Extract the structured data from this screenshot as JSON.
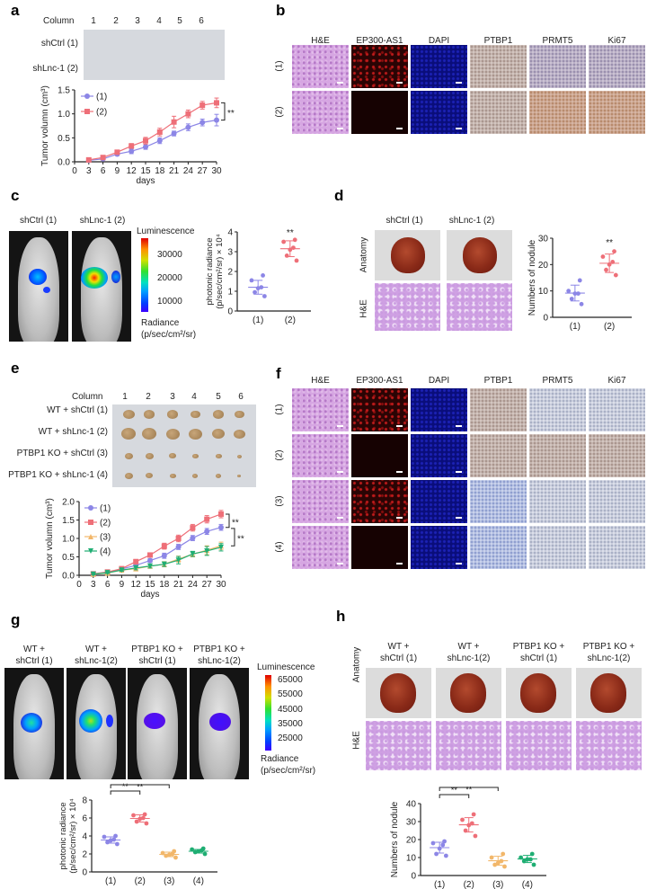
{
  "panels": {
    "a": {
      "label": "a",
      "column_label": "Column",
      "columns": [
        "1",
        "2",
        "3",
        "4",
        "5",
        "6"
      ],
      "rows": [
        "shCtrl (1)",
        "shLnc-1 (2)"
      ]
    },
    "b": {
      "label": "b",
      "stains": [
        "H&E",
        "EP300-AS1",
        "DAPI",
        "PTBP1",
        "PRMT5",
        "Ki67"
      ],
      "rows": [
        "(1)",
        "(2)"
      ]
    },
    "c": {
      "label": "c",
      "images": [
        "shCtrl (1)",
        "shLnc-1 (2)"
      ],
      "colorbar": {
        "title": "Luminescence",
        "ticks": [
          "30000",
          "20000",
          "10000"
        ],
        "unit_line1": "Radiance",
        "unit_line2": "(p/sec/cm²/sr)"
      }
    },
    "d": {
      "label": "d",
      "images": [
        "shCtrl (1)",
        "shLnc-1 (2)"
      ],
      "row_labels": [
        "Anatomy",
        "H&E"
      ]
    },
    "e": {
      "label": "e",
      "column_label": "Column",
      "columns": [
        "1",
        "2",
        "3",
        "4",
        "5",
        "6"
      ],
      "rows": [
        "WT + shCtrl (1)",
        "WT + shLnc-1 (2)",
        "PTBP1 KO + shCtrl (3)",
        "PTBP1 KO + shLnc-1 (4)"
      ]
    },
    "f": {
      "label": "f",
      "stains": [
        "H&E",
        "EP300-AS1",
        "DAPI",
        "PTBP1",
        "PRMT5",
        "Ki67"
      ],
      "rows": [
        "(1)",
        "(2)",
        "(3)",
        "(4)"
      ]
    },
    "g": {
      "label": "g",
      "images": [
        {
          "line1": "WT +",
          "line2": "shCtrl (1)"
        },
        {
          "line1": "WT +",
          "line2": "shLnc-1(2)"
        },
        {
          "line1": "PTBP1 KO +",
          "line2": "shCtrl (1)"
        },
        {
          "line1": "PTBP1 KO +",
          "line2": "shLnc-1(2)"
        }
      ],
      "colorbar": {
        "title": "Luminescence",
        "ticks": [
          "65000",
          "55000",
          "45000",
          "35000",
          "25000"
        ],
        "unit_line1": "Radiance",
        "unit_line2": "(p/sec/cm²/sr)"
      }
    },
    "h": {
      "label": "h",
      "images": [
        {
          "line1": "WT +",
          "line2": "shCtrl (1)"
        },
        {
          "line1": "WT +",
          "line2": "shLnc-1(2)"
        },
        {
          "line1": "PTBP1 KO +",
          "line2": "shCtrl (1)"
        },
        {
          "line1": "PTBP1 KO +",
          "line2": "shLnc-1(2)"
        }
      ],
      "row_labels": [
        "Anatomy",
        "H&E"
      ]
    }
  },
  "colors": {
    "g1": "#8c86e6",
    "g2": "#ee6f78",
    "g3": "#f2b76a",
    "g4": "#1fae73",
    "axis": "#222222"
  },
  "chart_data": [
    {
      "id": "a-growth",
      "type": "line",
      "xlabel": "days",
      "ylabel": "Tumor volumn (cm³)",
      "x": [
        3,
        6,
        9,
        12,
        15,
        18,
        21,
        24,
        27,
        30
      ],
      "xticks": [
        "0",
        "3",
        "6",
        "9",
        "12",
        "15",
        "18",
        "21",
        "24",
        "27",
        "30"
      ],
      "xlim": [
        0,
        30
      ],
      "ylim": [
        0,
        1.5
      ],
      "yticks": [
        "0.0",
        "0.5",
        "1.0",
        "1.5"
      ],
      "series": [
        {
          "name": "(1)",
          "marker": "circle",
          "values": [
            0.03,
            0.06,
            0.16,
            0.22,
            0.31,
            0.44,
            0.59,
            0.72,
            0.82,
            0.87
          ],
          "err": [
            0.02,
            0.02,
            0.03,
            0.05,
            0.05,
            0.06,
            0.05,
            0.07,
            0.07,
            0.12
          ]
        },
        {
          "name": "(2)",
          "marker": "square",
          "values": [
            0.04,
            0.09,
            0.2,
            0.33,
            0.44,
            0.62,
            0.83,
            1.0,
            1.18,
            1.23
          ],
          "err": [
            0.02,
            0.03,
            0.04,
            0.05,
            0.07,
            0.08,
            0.12,
            0.08,
            0.08,
            0.1
          ]
        }
      ],
      "annotations": [
        "**"
      ]
    },
    {
      "id": "c-radiance",
      "type": "scatter",
      "ylabel": "photonic radiance (p/sec/cm²/sr) × 10⁴",
      "categories": [
        "(1)",
        "(2)"
      ],
      "ylim": [
        0,
        4
      ],
      "yticks": [
        "0",
        "1",
        "2",
        "3",
        "4"
      ],
      "series": [
        {
          "name": "(1)",
          "points": [
            0.75,
            0.95,
            1.15,
            1.2,
            1.55,
            1.8
          ],
          "mean": 1.2,
          "sd": 0.35
        },
        {
          "name": "(2)",
          "points": [
            2.55,
            2.8,
            3.1,
            3.2,
            3.5,
            3.6
          ],
          "mean": 3.15,
          "sd": 0.4
        }
      ],
      "annotations": [
        "**"
      ]
    },
    {
      "id": "d-nodule",
      "type": "scatter",
      "ylabel": "Numbers of nodule",
      "categories": [
        "(1)",
        "(2)"
      ],
      "ylim": [
        0,
        30
      ],
      "yticks": [
        "0",
        "10",
        "20",
        "30"
      ],
      "series": [
        {
          "name": "(1)",
          "points": [
            5,
            7,
            9,
            9,
            10,
            14
          ],
          "mean": 9.2,
          "sd": 3
        },
        {
          "name": "(2)",
          "points": [
            16,
            18,
            20,
            21,
            23,
            25
          ],
          "mean": 20.5,
          "sd": 3.5
        }
      ],
      "annotations": [
        "**"
      ]
    },
    {
      "id": "e-growth",
      "type": "line",
      "xlabel": "days",
      "ylabel": "Tumor volumn (cm³)",
      "x": [
        3,
        6,
        9,
        12,
        15,
        18,
        21,
        24,
        27,
        30
      ],
      "xticks": [
        "0",
        "3",
        "6",
        "9",
        "12",
        "15",
        "18",
        "21",
        "24",
        "27",
        "30"
      ],
      "xlim": [
        0,
        30
      ],
      "ylim": [
        0,
        2.0
      ],
      "yticks": [
        "0.0",
        "0.5",
        "1.0",
        "1.5",
        "2.0"
      ],
      "series": [
        {
          "name": "(1)",
          "marker": "circle",
          "values": [
            0.03,
            0.08,
            0.17,
            0.27,
            0.4,
            0.53,
            0.77,
            1.01,
            1.19,
            1.3
          ],
          "err": [
            0.02,
            0.03,
            0.03,
            0.05,
            0.05,
            0.07,
            0.07,
            0.07,
            0.08,
            0.08
          ]
        },
        {
          "name": "(2)",
          "marker": "square",
          "values": [
            0.04,
            0.09,
            0.18,
            0.37,
            0.55,
            0.79,
            1.0,
            1.29,
            1.52,
            1.66
          ],
          "err": [
            0.02,
            0.03,
            0.04,
            0.06,
            0.06,
            0.08,
            0.09,
            0.09,
            0.1,
            0.1
          ]
        },
        {
          "name": "(3)",
          "marker": "triangle-up",
          "values": [
            0.03,
            0.06,
            0.14,
            0.18,
            0.25,
            0.3,
            0.44,
            0.57,
            0.68,
            0.8
          ],
          "err": [
            0.02,
            0.02,
            0.03,
            0.06,
            0.05,
            0.07,
            0.08,
            0.07,
            0.12,
            0.1
          ]
        },
        {
          "name": "(4)",
          "marker": "triangle-down",
          "values": [
            0.03,
            0.07,
            0.14,
            0.2,
            0.25,
            0.3,
            0.41,
            0.58,
            0.66,
            0.76
          ],
          "err": [
            0.02,
            0.02,
            0.03,
            0.05,
            0.05,
            0.06,
            0.1,
            0.07,
            0.12,
            0.1
          ]
        }
      ],
      "annotations": [
        "**",
        "**"
      ]
    },
    {
      "id": "g-radiance",
      "type": "scatter",
      "ylabel": "photonic radiance (p/sec/cm²/sr) × 10⁴",
      "categories": [
        "(1)",
        "(2)",
        "(3)",
        "(4)"
      ],
      "ylim": [
        0,
        8
      ],
      "yticks": [
        "0",
        "2",
        "4",
        "6",
        "8"
      ],
      "series": [
        {
          "name": "(1)",
          "points": [
            3.1,
            3.3,
            3.5,
            3.6,
            3.9,
            4.0
          ],
          "mean": 3.55,
          "sd": 0.35
        },
        {
          "name": "(2)",
          "points": [
            5.4,
            5.6,
            5.9,
            6.0,
            6.3,
            6.4
          ],
          "mean": 5.95,
          "sd": 0.4
        },
        {
          "name": "(3)",
          "points": [
            1.6,
            1.8,
            1.9,
            2.0,
            2.1,
            2.3
          ],
          "mean": 1.95,
          "sd": 0.25
        },
        {
          "name": "(4)",
          "points": [
            2.0,
            2.2,
            2.3,
            2.4,
            2.5,
            2.6
          ],
          "mean": 2.3,
          "sd": 0.2
        }
      ],
      "annotations": [
        "**",
        "**"
      ]
    },
    {
      "id": "h-nodule",
      "type": "scatter",
      "ylabel": "Numbers of nodule",
      "categories": [
        "(1)",
        "(2)",
        "(3)",
        "(4)"
      ],
      "ylim": [
        0,
        40
      ],
      "yticks": [
        "0",
        "10",
        "20",
        "30",
        "40"
      ],
      "series": [
        {
          "name": "(1)",
          "points": [
            11,
            12,
            15,
            17,
            18,
            19
          ],
          "mean": 15.5,
          "sd": 3
        },
        {
          "name": "(2)",
          "points": [
            22,
            25,
            28,
            29,
            31,
            34
          ],
          "mean": 28.2,
          "sd": 4
        },
        {
          "name": "(3)",
          "points": [
            5,
            6,
            7,
            8,
            10,
            12
          ],
          "mean": 8.2,
          "sd": 2.5
        },
        {
          "name": "(4)",
          "points": [
            6,
            8,
            9,
            9,
            10,
            12
          ],
          "mean": 9.2,
          "sd": 2
        }
      ],
      "annotations": [
        "**",
        "**"
      ]
    }
  ]
}
